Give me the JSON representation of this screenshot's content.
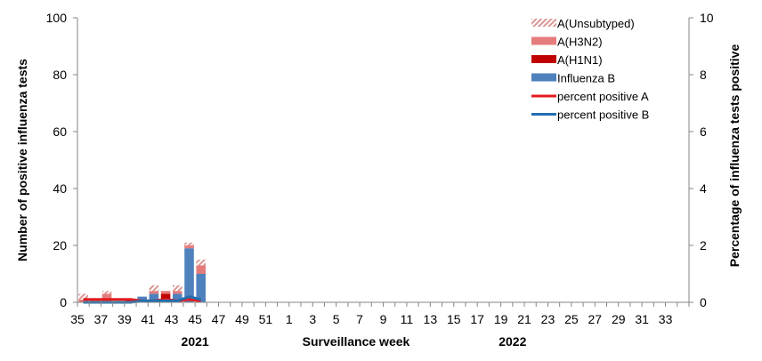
{
  "chart_data": {
    "type": "bar",
    "stacked": true,
    "title": "",
    "xlabel": "Surveillance  week",
    "ylabel": "Number of positive influenza tests",
    "y2label": "Percentage of influenza tests positive",
    "ylim": [
      0,
      100
    ],
    "y2lim": [
      0,
      10
    ],
    "yticks": [
      0,
      20,
      40,
      60,
      80,
      100
    ],
    "y2ticks": [
      0,
      2,
      4,
      6,
      8,
      10
    ],
    "year_labels": [
      {
        "label": "2021",
        "week_index": 10
      },
      {
        "label": "2022",
        "week_index": 37
      }
    ],
    "categories": [
      35,
      36,
      37,
      38,
      39,
      40,
      41,
      42,
      43,
      44,
      45,
      46,
      47,
      48,
      49,
      50,
      51,
      52,
      1,
      2,
      3,
      4,
      5,
      6,
      7,
      8,
      9,
      10,
      11,
      12,
      13,
      14,
      15,
      16,
      17,
      18,
      19,
      20,
      21,
      22,
      23,
      24,
      25,
      26,
      27,
      28,
      29,
      30,
      31,
      32,
      33,
      34
    ],
    "tick_labels": [
      "35",
      "37",
      "39",
      "41",
      "43",
      "45",
      "47",
      "49",
      "51",
      "1",
      "3",
      "5",
      "7",
      "9",
      "11",
      "13",
      "15",
      "17",
      "19",
      "21",
      "23",
      "25",
      "27",
      "29",
      "31",
      "33"
    ],
    "grid": false,
    "legend_position": "top-right",
    "series": [
      {
        "name": "Influenza B",
        "kind": "bar",
        "color": "#4f81bd",
        "values": [
          0,
          0,
          0,
          0,
          0,
          2,
          3,
          1,
          3,
          19,
          10,
          0,
          0,
          0,
          0,
          0,
          0,
          0,
          0,
          0,
          0,
          0,
          0,
          0,
          0,
          0,
          0,
          0,
          0,
          0,
          0,
          0,
          0,
          0,
          0,
          0,
          0,
          0,
          0,
          0,
          0,
          0,
          0,
          0,
          0,
          0,
          0,
          0,
          0,
          0,
          0,
          0
        ]
      },
      {
        "name": "A(H1N1)",
        "kind": "bar",
        "color": "#c00000",
        "values": [
          0,
          0,
          0,
          0,
          1,
          0,
          0,
          2,
          0,
          0,
          0,
          0,
          0,
          0,
          0,
          0,
          0,
          0,
          0,
          0,
          0,
          0,
          0,
          0,
          0,
          0,
          0,
          0,
          0,
          0,
          0,
          0,
          0,
          0,
          0,
          0,
          0,
          0,
          0,
          0,
          0,
          0,
          0,
          0,
          0,
          0,
          0,
          0,
          0,
          0,
          0,
          0
        ]
      },
      {
        "name": "A(H3N2)",
        "kind": "bar",
        "color": "#e57c7c",
        "values": [
          1,
          1,
          3,
          0,
          0,
          0,
          1,
          1,
          1,
          1,
          3,
          0,
          0,
          0,
          0,
          0,
          0,
          0,
          0,
          0,
          0,
          0,
          0,
          0,
          0,
          0,
          0,
          0,
          0,
          0,
          0,
          0,
          0,
          0,
          0,
          0,
          0,
          0,
          0,
          0,
          0,
          0,
          0,
          0,
          0,
          0,
          0,
          0,
          0,
          0,
          0,
          0
        ]
      },
      {
        "name": "A(Unsubtyped)",
        "kind": "bar",
        "color": "#d99694",
        "pattern": "hatched",
        "values": [
          2,
          0,
          1,
          0,
          0,
          0,
          2,
          0,
          2,
          1,
          2,
          0,
          0,
          0,
          0,
          0,
          0,
          0,
          0,
          0,
          0,
          0,
          0,
          0,
          0,
          0,
          0,
          0,
          0,
          0,
          0,
          0,
          0,
          0,
          0,
          0,
          0,
          0,
          0,
          0,
          0,
          0,
          0,
          0,
          0,
          0,
          0,
          0,
          0,
          0,
          0,
          0
        ]
      },
      {
        "name": "percent positive A",
        "kind": "line",
        "axis": "right",
        "color": "#e41a1c",
        "values": [
          0.1,
          0.1,
          0.1,
          0.1,
          0.1,
          0.05,
          0.05,
          0.1,
          0.05,
          0.1,
          0.05,
          null,
          null,
          null,
          null,
          null,
          null,
          null,
          null,
          null,
          null,
          null,
          null,
          null,
          null,
          null,
          null,
          null,
          null,
          null,
          null,
          null,
          null,
          null,
          null,
          null,
          null,
          null,
          null,
          null,
          null,
          null,
          null,
          null,
          null,
          null,
          null,
          null,
          null,
          null,
          null,
          null
        ]
      },
      {
        "name": "percent positive B",
        "kind": "line",
        "axis": "right",
        "color": "#1f6fb2",
        "values": [
          0,
          0,
          0,
          0,
          0,
          0.05,
          0.05,
          0.05,
          0.05,
          0.2,
          0.1,
          null,
          null,
          null,
          null,
          null,
          null,
          null,
          null,
          null,
          null,
          null,
          null,
          null,
          null,
          null,
          null,
          null,
          null,
          null,
          null,
          null,
          null,
          null,
          null,
          null,
          null,
          null,
          null,
          null,
          null,
          null,
          null,
          null,
          null,
          null,
          null,
          null,
          null,
          null,
          null,
          null
        ]
      }
    ]
  },
  "legend": {
    "items": [
      {
        "label": "A(Unsubtyped)",
        "swatch": "hatched",
        "color": "#d99694"
      },
      {
        "label": "A(H3N2)",
        "swatch": "bar",
        "color": "#e57c7c"
      },
      {
        "label": "A(H1N1)",
        "swatch": "bar",
        "color": "#c00000"
      },
      {
        "label": "Influenza B",
        "swatch": "bar",
        "color": "#4f81bd"
      },
      {
        "label": "percent positive A",
        "swatch": "line",
        "color": "#e41a1c"
      },
      {
        "label": "percent positive B",
        "swatch": "line",
        "color": "#1f6fb2"
      }
    ]
  },
  "axes": {
    "x_title": "Surveillance  week",
    "y_left_title": "Number of positive influenza tests",
    "y_right_title": "Percentage of influenza tests positive"
  }
}
